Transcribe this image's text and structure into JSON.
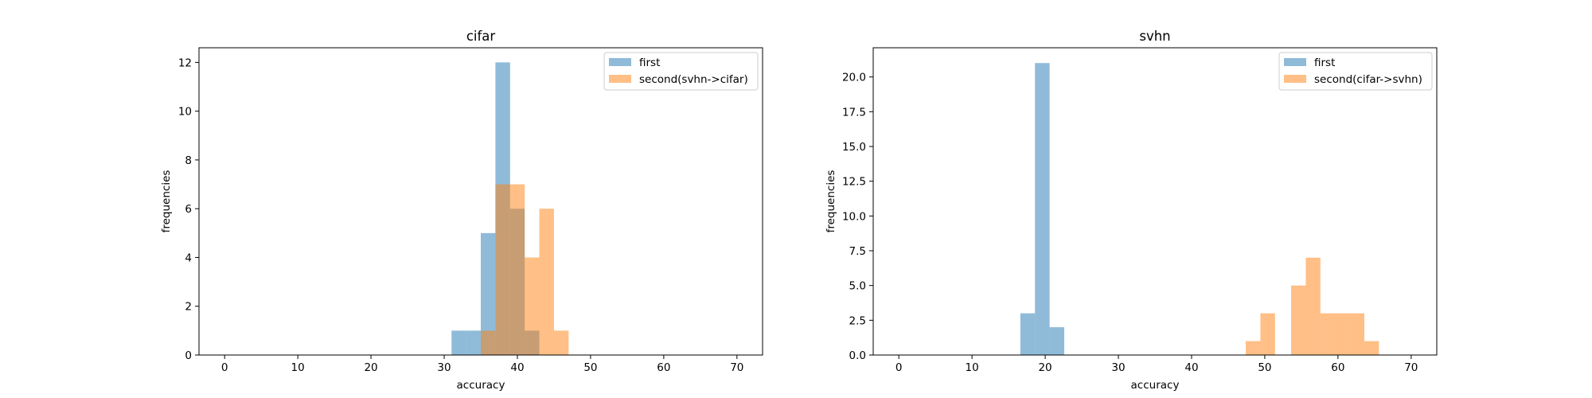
{
  "chart_data": [
    {
      "type": "bar",
      "title": "cifar",
      "xlabel": "accuracy",
      "ylabel": "frequencies",
      "xlim": [
        -3.5,
        73.5
      ],
      "ylim": [
        0,
        12.6
      ],
      "xticks": [
        0,
        10,
        20,
        30,
        40,
        50,
        60,
        70
      ],
      "yticks": [
        0,
        2,
        4,
        6,
        8,
        10,
        12
      ],
      "ytick_labels": [
        "0",
        "2",
        "4",
        "6",
        "8",
        "10",
        "12"
      ],
      "legend_position": "top-right",
      "series": [
        {
          "name": "first",
          "color": "#1f77b4",
          "bins": [
            {
              "x0": 31.0,
              "x1": 33.0,
              "value": 1
            },
            {
              "x0": 33.0,
              "x1": 35.0,
              "value": 1
            },
            {
              "x0": 35.0,
              "x1": 37.0,
              "value": 5
            },
            {
              "x0": 37.0,
              "x1": 39.0,
              "value": 12
            },
            {
              "x0": 39.0,
              "x1": 41.0,
              "value": 6
            },
            {
              "x0": 41.0,
              "x1": 43.0,
              "value": 1
            }
          ]
        },
        {
          "name": "second(svhn->cifar)",
          "color": "#ff7f0e",
          "bins": [
            {
              "x0": 35.0,
              "x1": 37.0,
              "value": 1
            },
            {
              "x0": 37.0,
              "x1": 39.0,
              "value": 7
            },
            {
              "x0": 39.0,
              "x1": 41.0,
              "value": 7
            },
            {
              "x0": 41.0,
              "x1": 43.0,
              "value": 4
            },
            {
              "x0": 43.0,
              "x1": 45.0,
              "value": 6
            },
            {
              "x0": 45.0,
              "x1": 47.0,
              "value": 1
            }
          ]
        }
      ]
    },
    {
      "type": "bar",
      "title": "svhn",
      "xlabel": "accuracy",
      "ylabel": "frequencies",
      "xlim": [
        -3.5,
        73.5
      ],
      "ylim": [
        0,
        22.1
      ],
      "xticks": [
        0,
        10,
        20,
        30,
        40,
        50,
        60,
        70
      ],
      "yticks": [
        0,
        2.5,
        5,
        7.5,
        10,
        12.5,
        15,
        17.5,
        20
      ],
      "ytick_labels": [
        "0.0",
        "2.5",
        "5.0",
        "7.5",
        "10.0",
        "12.5",
        "15.0",
        "17.5",
        "20.0"
      ],
      "legend_position": "top-right",
      "series": [
        {
          "name": "first",
          "color": "#1f77b4",
          "bins": [
            {
              "x0": 16.6,
              "x1": 18.6,
              "value": 3
            },
            {
              "x0": 18.6,
              "x1": 20.6,
              "value": 21
            },
            {
              "x0": 20.6,
              "x1": 22.6,
              "value": 2
            }
          ]
        },
        {
          "name": "second(cifar->svhn)",
          "color": "#ff7f0e",
          "bins": [
            {
              "x0": 47.4,
              "x1": 49.4,
              "value": 1
            },
            {
              "x0": 49.4,
              "x1": 51.4,
              "value": 3
            },
            {
              "x0": 53.6,
              "x1": 55.6,
              "value": 5
            },
            {
              "x0": 55.6,
              "x1": 57.6,
              "value": 7
            },
            {
              "x0": 57.6,
              "x1": 59.6,
              "value": 3
            },
            {
              "x0": 59.6,
              "x1": 61.6,
              "value": 3
            },
            {
              "x0": 61.6,
              "x1": 63.6,
              "value": 3
            },
            {
              "x0": 63.6,
              "x1": 65.6,
              "value": 1
            }
          ]
        }
      ]
    }
  ]
}
